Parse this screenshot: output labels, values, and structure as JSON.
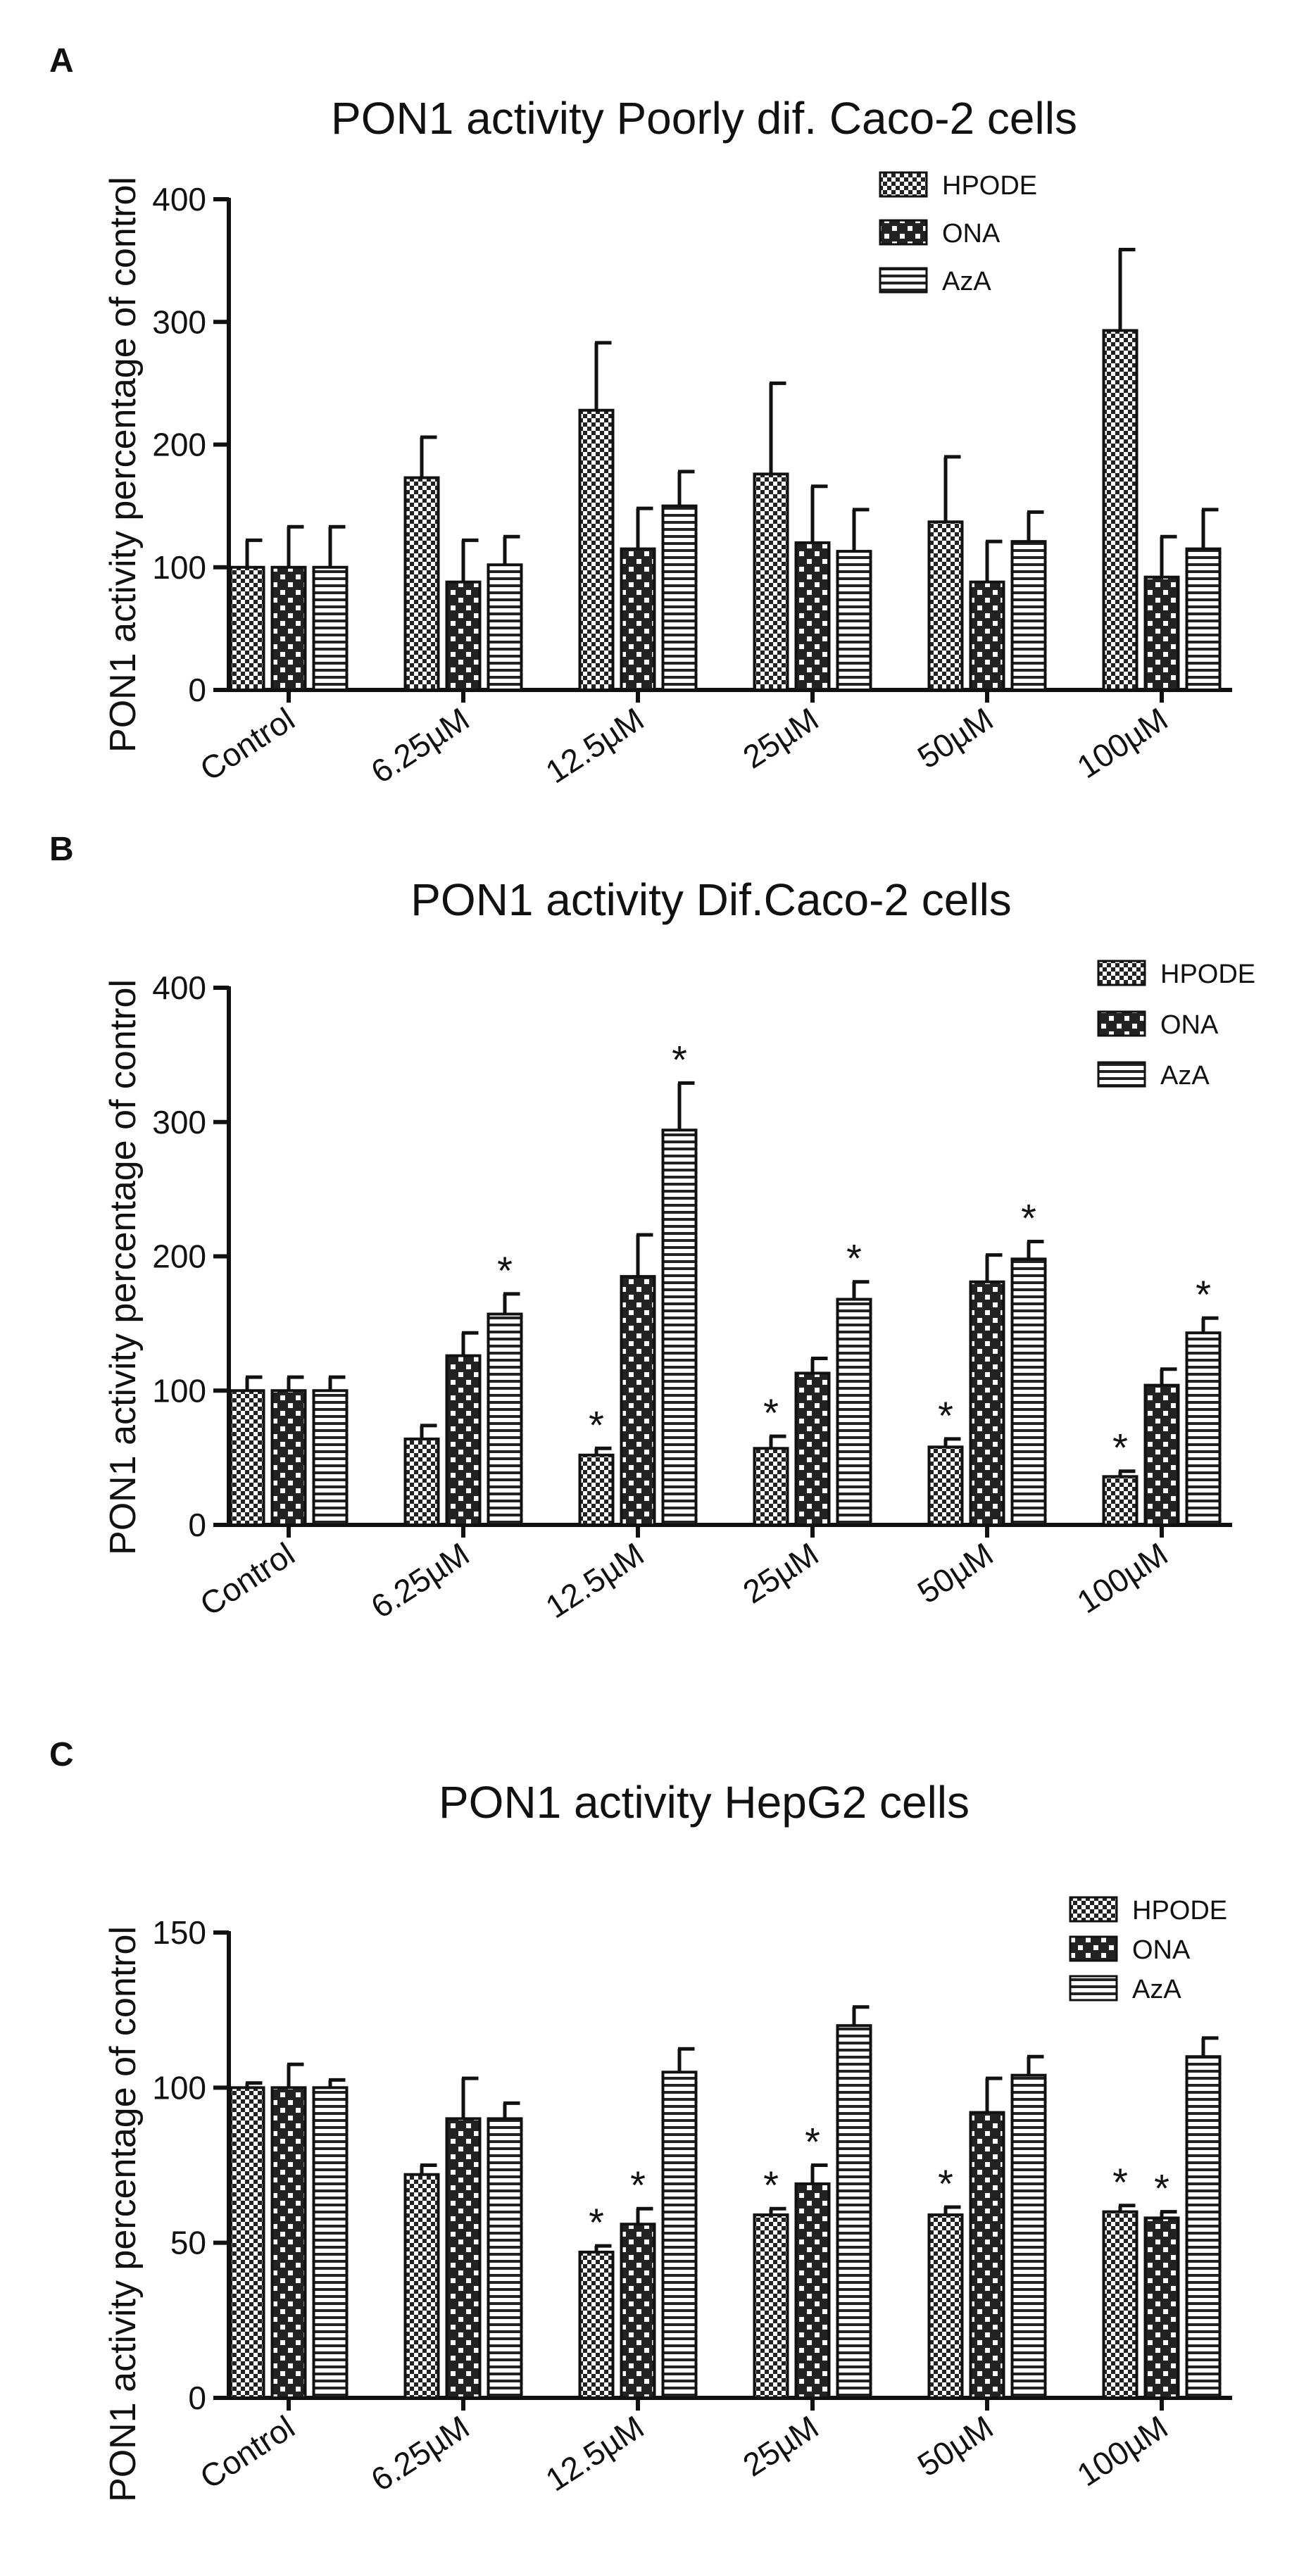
{
  "chart_data": [
    {
      "type": "bar",
      "panel": "A",
      "title": "PON1 activity Poorly dif. Caco-2 cells",
      "xlabel": "",
      "ylabel": "PON1 activity percentage of control",
      "ylim": [
        0,
        400
      ],
      "yticks": [
        "0",
        "100",
        "200",
        "300",
        "400"
      ],
      "categories": [
        "Control",
        "6.25µM",
        "12.5µM",
        "25µM",
        "50µM",
        "100µM"
      ],
      "legend": "top-right",
      "series": [
        {
          "name": "HPODE",
          "pattern": "checker-fine",
          "values": [
            100,
            173,
            228,
            176,
            137,
            293
          ],
          "errors": [
            22,
            33,
            55,
            74,
            53,
            66
          ],
          "stars": [
            false,
            false,
            false,
            false,
            false,
            false
          ]
        },
        {
          "name": "ONA",
          "pattern": "checker-coarse",
          "values": [
            100,
            88,
            115,
            120,
            88,
            92
          ],
          "errors": [
            33,
            34,
            33,
            46,
            33,
            33
          ],
          "stars": [
            false,
            false,
            false,
            false,
            false,
            false
          ]
        },
        {
          "name": "AzA",
          "pattern": "stripes",
          "values": [
            100,
            102,
            150,
            113,
            121,
            115
          ],
          "errors": [
            33,
            23,
            28,
            34,
            24,
            32
          ],
          "stars": [
            false,
            false,
            false,
            false,
            false,
            false
          ]
        }
      ]
    },
    {
      "type": "bar",
      "panel": "B",
      "title": "PON1 activity Dif.Caco-2 cells",
      "xlabel": "",
      "ylabel": "PON1 activity percentage of control",
      "ylim": [
        0,
        400
      ],
      "yticks": [
        "0",
        "100",
        "200",
        "300",
        "400"
      ],
      "categories": [
        "Control",
        "6.25µM",
        "12.5µM",
        "25µM",
        "50µM",
        "100µM"
      ],
      "legend": "top-right",
      "series": [
        {
          "name": "HPODE",
          "pattern": "checker-fine",
          "values": [
            100,
            64,
            52,
            57,
            58,
            36
          ],
          "errors": [
            10,
            10,
            5,
            9,
            6,
            4
          ],
          "stars": [
            false,
            false,
            true,
            true,
            true,
            true
          ]
        },
        {
          "name": "ONA",
          "pattern": "checker-coarse",
          "values": [
            100,
            126,
            185,
            113,
            181,
            104
          ],
          "errors": [
            10,
            17,
            31,
            11,
            20,
            12
          ],
          "stars": [
            false,
            false,
            false,
            false,
            false,
            false
          ]
        },
        {
          "name": "AzA",
          "pattern": "stripes",
          "values": [
            100,
            157,
            294,
            168,
            198,
            143
          ],
          "errors": [
            10,
            15,
            35,
            13,
            13,
            11
          ],
          "stars": [
            false,
            true,
            true,
            true,
            true,
            true
          ]
        }
      ],
      "star_symbol": "*"
    },
    {
      "type": "bar",
      "panel": "C",
      "title": "PON1 activity HepG2 cells",
      "xlabel": "",
      "ylabel": "PON1 activity percentage of control",
      "ylim": [
        0,
        150
      ],
      "yticks": [
        "0",
        "50",
        "100",
        "150"
      ],
      "categories": [
        "Control",
        "6.25µM",
        "12.5µM",
        "25µM",
        "50µM",
        "100µM"
      ],
      "legend": "top-right",
      "series": [
        {
          "name": "HPODE",
          "pattern": "checker-fine",
          "values": [
            100,
            72,
            47,
            59,
            59,
            60
          ],
          "errors": [
            1.5,
            3,
            2,
            2,
            2.5,
            2
          ],
          "stars": [
            false,
            false,
            true,
            true,
            true,
            true
          ]
        },
        {
          "name": "ONA",
          "pattern": "checker-coarse",
          "values": [
            100,
            90,
            56,
            69,
            92,
            58
          ],
          "errors": [
            7.5,
            13,
            5,
            6,
            11,
            2
          ],
          "stars": [
            false,
            false,
            true,
            true,
            false,
            true
          ]
        },
        {
          "name": "AzA",
          "pattern": "stripes",
          "values": [
            100,
            90,
            105,
            120,
            104,
            110
          ],
          "errors": [
            2.5,
            5,
            7.5,
            6,
            6,
            6
          ],
          "stars": [
            false,
            false,
            false,
            false,
            false,
            false
          ]
        }
      ],
      "star_symbol": "*"
    }
  ]
}
